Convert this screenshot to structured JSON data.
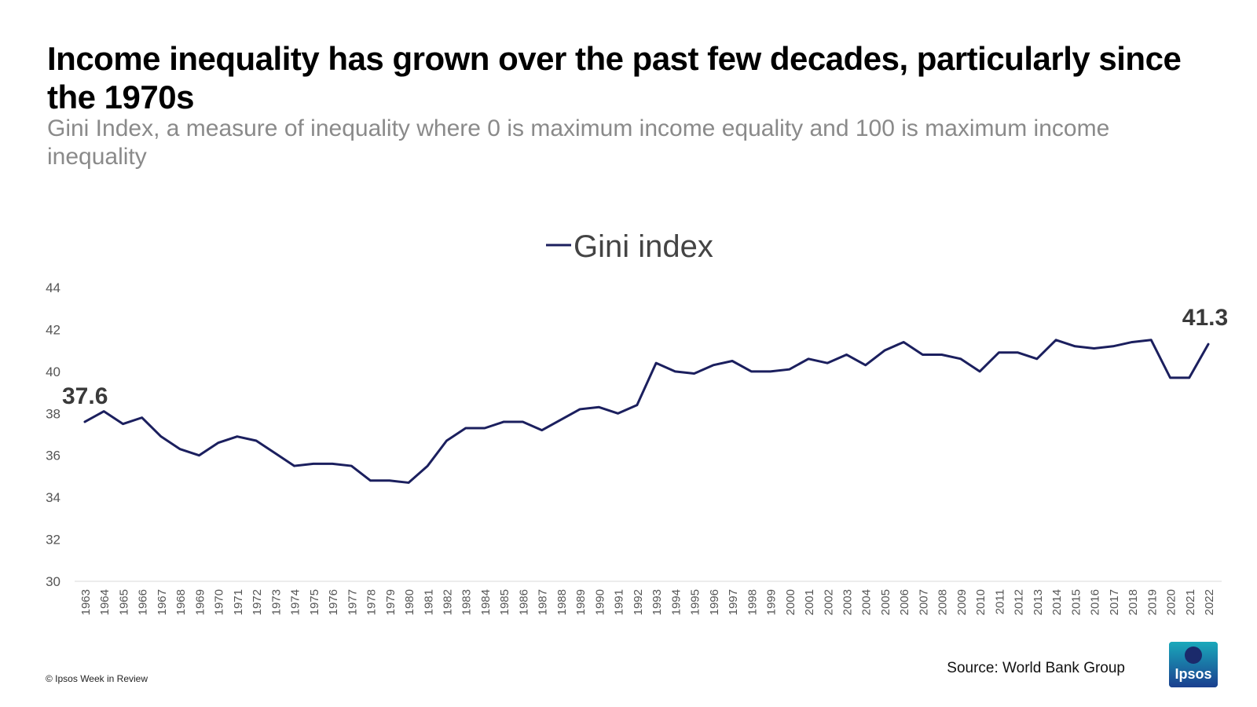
{
  "header": {
    "title": "Income inequality has grown over the past few decades, particularly since the 1970s",
    "subtitle": "Gini Index, a measure of inequality where 0 is maximum income equality and 100 is maximum income inequality"
  },
  "footer": {
    "copyright": "© Ipsos Week in Review",
    "source": "Source: World Bank Group",
    "logo_text": "Ipsos"
  },
  "colors": {
    "line": "#1b1f5e",
    "axis_text": "#555555",
    "label_text": "#3a3a3a"
  },
  "chart_data": {
    "type": "line",
    "title": "",
    "xlabel": "",
    "ylabel": "",
    "ylim": [
      30,
      44
    ],
    "yticks": [
      30,
      32,
      34,
      36,
      38,
      40,
      42,
      44
    ],
    "legend": "top-center",
    "grid": false,
    "categories": [
      "1963",
      "1964",
      "1965",
      "1966",
      "1967",
      "1968",
      "1969",
      "1970",
      "1971",
      "1972",
      "1973",
      "1974",
      "1975",
      "1976",
      "1977",
      "1978",
      "1979",
      "1980",
      "1981",
      "1982",
      "1983",
      "1984",
      "1985",
      "1986",
      "1987",
      "1988",
      "1989",
      "1990",
      "1991",
      "1992",
      "1993",
      "1994",
      "1995",
      "1996",
      "1997",
      "1998",
      "1999",
      "2000",
      "2001",
      "2002",
      "2003",
      "2004",
      "2005",
      "2006",
      "2007",
      "2008",
      "2009",
      "2010",
      "2011",
      "2012",
      "2013",
      "2014",
      "2015",
      "2016",
      "2017",
      "2018",
      "2019",
      "2020",
      "2021",
      "2022"
    ],
    "series": [
      {
        "name": "Gini index",
        "values": [
          37.6,
          38.1,
          37.5,
          37.8,
          36.9,
          36.3,
          36.0,
          36.6,
          36.9,
          36.7,
          36.1,
          35.5,
          35.6,
          35.6,
          35.5,
          34.8,
          34.8,
          34.7,
          35.5,
          36.7,
          37.3,
          37.3,
          37.6,
          37.6,
          37.2,
          37.7,
          38.2,
          38.3,
          38.0,
          38.4,
          40.4,
          40.0,
          39.9,
          40.3,
          40.5,
          40.0,
          40.0,
          40.1,
          40.6,
          40.4,
          40.8,
          40.3,
          41.0,
          41.4,
          40.8,
          40.8,
          40.6,
          40.0,
          40.9,
          40.9,
          40.6,
          41.5,
          41.2,
          41.1,
          41.2,
          41.4,
          41.5,
          39.7,
          39.7,
          41.3
        ]
      }
    ],
    "annotations": [
      {
        "label": "37.6",
        "category": "1963"
      },
      {
        "label": "41.3",
        "category": "2022"
      }
    ]
  }
}
